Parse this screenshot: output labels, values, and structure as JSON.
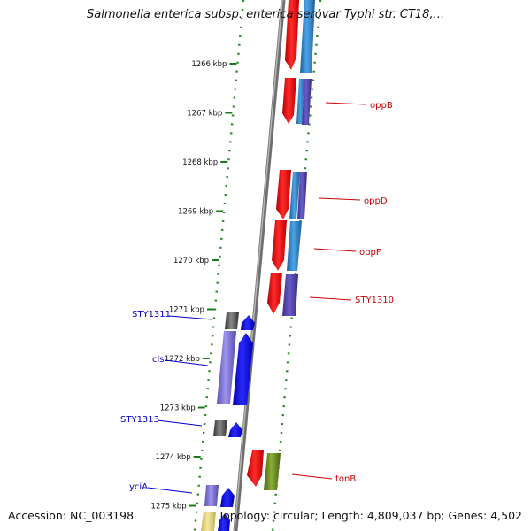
{
  "title": "Salmonella enterica subsp. enterica serovar Typhi str. CT18,...",
  "footer": {
    "accession_label": "Accession:",
    "accession": "NC_003198",
    "topology_label": "Topology:",
    "topology": "circular;",
    "length_label": "Length:",
    "length": "4,809,037 bp;",
    "genes_label": "Genes:",
    "genes": "4,502"
  },
  "ruler": {
    "ticks": [
      "1266 kbp",
      "1267 kbp",
      "1268 kbp",
      "1269 kbp",
      "1270 kbp",
      "1271 kbp",
      "1272 kbp",
      "1273 kbp",
      "1274 kbp",
      "1275 kbp"
    ]
  },
  "gene_labels": {
    "right": [
      "oppB",
      "oppD",
      "oppF",
      "STY1310",
      "tonB"
    ],
    "left": [
      "STY1311",
      "cls",
      "STY1313",
      "yciA"
    ]
  },
  "colors": {
    "forward_strand": "#ff0000",
    "forward_alt": "#2e8fd6",
    "reverse_strand": "#0000ff",
    "reverse_alt": "#6a5acd",
    "unknown": "#555555",
    "olive": "#6b8e23",
    "ruler_tick": "#1a7a1a",
    "label_right": "#cc0000",
    "label_left": "#0000cc"
  }
}
